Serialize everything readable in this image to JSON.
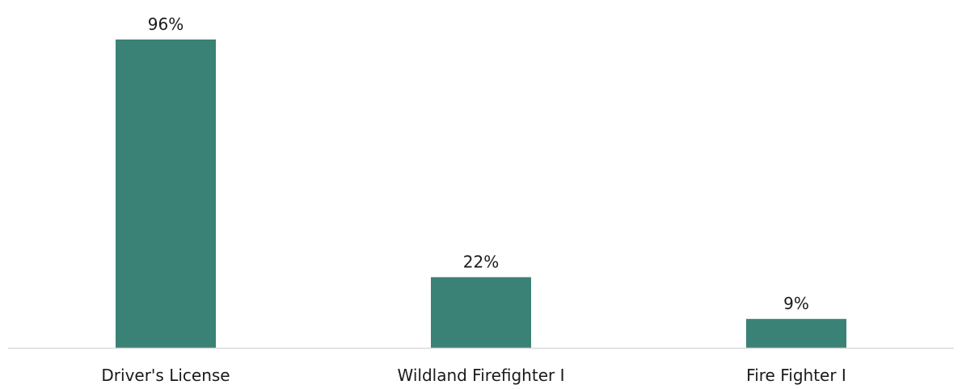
{
  "chart_data": {
    "type": "bar",
    "categories": [
      "Driver's License",
      "Wildland Firefighter I",
      "Fire Fighter I"
    ],
    "values": [
      96,
      22,
      9
    ],
    "value_labels": [
      "96%",
      "22%",
      "9%"
    ],
    "unit": "%",
    "ylim": [
      0,
      100
    ],
    "grid": false,
    "legend": "none",
    "bar_color": "#3A8275",
    "axis_color": "#D9D9D9"
  }
}
